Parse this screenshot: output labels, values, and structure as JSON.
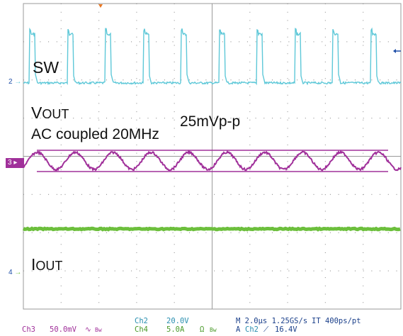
{
  "labels": {
    "sw": "SW",
    "vout_main": "V",
    "vout_sub": "OUT",
    "ac_coupled": "AC coupled 20MHz",
    "ripple": "25mVp-p",
    "iout_main": "I",
    "iout_sub": "OUT"
  },
  "channel_markers": {
    "ch2": "2",
    "ch3": "3",
    "ch4": "4"
  },
  "status_bar": {
    "ch3_name": "Ch3",
    "ch3_scale": "50.0mV",
    "ch3_coupling": "∿",
    "ch3_bw": "Bw",
    "ch2_name": "Ch2",
    "ch2_scale": "20.0V",
    "ch4_name": "Ch4",
    "ch4_scale": "5.0A",
    "ch4_unit": "Ω",
    "ch4_bw": "Bw",
    "timebase": "M 2.0µs 1.25GS/s",
    "record": "IT 400ps/pt",
    "trigger_prefix": "A",
    "trigger_source": "Ch2",
    "trigger_slope": "⟋",
    "trigger_level": "16.4V"
  },
  "colors": {
    "ch2": "#5ec8d8",
    "ch3": "#a0309a",
    "ch4": "#6cbf3c",
    "grid": "#9a9a9a",
    "trigger_marker": "#e87722",
    "marker_text": "#1f4fa8"
  }
}
